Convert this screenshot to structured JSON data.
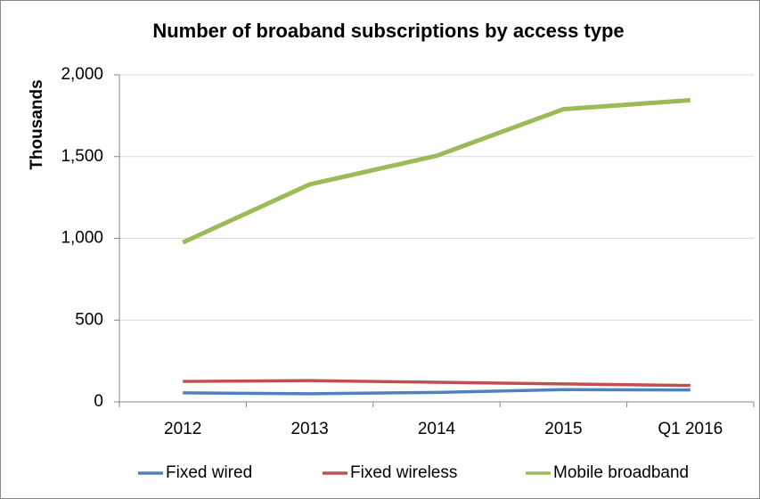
{
  "chart_data": {
    "type": "line",
    "title": "Number of broaband subscriptions by access type",
    "y_label": "Thousands",
    "categories": [
      "2012",
      "2013",
      "2014",
      "2015",
      "Q1 2016"
    ],
    "series": [
      {
        "name": "Fixed wired",
        "color": "#4f81bd",
        "values": [
          55,
          50,
          58,
          75,
          73
        ]
      },
      {
        "name": "Fixed wireless",
        "color": "#c0504d",
        "values": [
          125,
          130,
          120,
          110,
          100
        ]
      },
      {
        "name": "Mobile broadband",
        "color": "#9bbb59",
        "values": [
          975,
          1330,
          1505,
          1790,
          1845
        ]
      }
    ],
    "ylim": [
      0,
      2000
    ],
    "yticks": [
      0,
      500,
      {
        "value": 1000,
        "label": "1,000"
      },
      {
        "value": 1500,
        "label": "1,500"
      },
      {
        "value": 2000,
        "label": "2,000"
      }
    ],
    "grid": true,
    "legend": "bottom"
  }
}
